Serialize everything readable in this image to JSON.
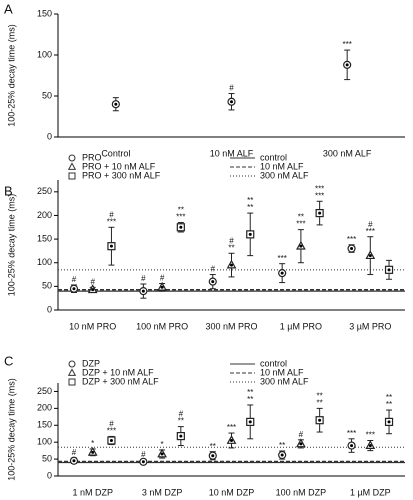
{
  "chart_data": [
    {
      "panel": "A",
      "type": "dot",
      "ylabel": "100-25% decay time (ms)",
      "categories": [
        "Control",
        "10 nM ALF",
        "300 nM ALF"
      ],
      "series": [
        {
          "marker": "circle",
          "values": [
            40,
            43,
            88
          ],
          "errors": [
            8,
            10,
            18
          ],
          "annotations": [
            [],
            [
              "#"
            ],
            [
              "***"
            ]
          ]
        }
      ],
      "ylim": [
        0,
        150
      ],
      "yticks": [
        0,
        50,
        100,
        150
      ]
    },
    {
      "panel": "B",
      "type": "dot",
      "ylabel": "100-25% decay time (ms)",
      "categories": [
        "10 nM PRO",
        "100 nM PRO",
        "300 nM PRO",
        "1 µM PRO",
        "3 µM PRO"
      ],
      "series": [
        {
          "name": "PRO",
          "marker": "circle",
          "values": [
            45,
            40,
            60,
            78,
            130
          ],
          "errors": [
            8,
            15,
            15,
            20,
            8
          ],
          "annotations": [
            [
              "#"
            ],
            [
              "#"
            ],
            [
              "#"
            ],
            [
              "***"
            ],
            [
              "***"
            ]
          ]
        },
        {
          "name": "PRO + 10 nM ALF",
          "marker": "triangle",
          "values": [
            43,
            48,
            95,
            135,
            115
          ],
          "errors": [
            5,
            8,
            25,
            35,
            40
          ],
          "annotations": [
            [
              "#"
            ],
            [
              "#"
            ],
            [
              "#",
              "**"
            ],
            [
              "**",
              "***"
            ],
            [
              "#",
              "***"
            ]
          ]
        },
        {
          "name": "PRO + 300 nM ALF",
          "marker": "square",
          "values": [
            135,
            175,
            160,
            205,
            85
          ],
          "errors": [
            40,
            10,
            45,
            25,
            20
          ],
          "annotations": [
            [
              "#",
              "***"
            ],
            [
              "**",
              "***"
            ],
            [
              "**",
              "**"
            ],
            [
              "***",
              "***"
            ],
            []
          ]
        }
      ],
      "reference_lines": [
        {
          "name": "control",
          "value": 40,
          "dash": "solid"
        },
        {
          "name": "10 nM ALF",
          "value": 43,
          "dash": "dashed"
        },
        {
          "name": "300 nM ALF",
          "value": 85,
          "dash": "dotted"
        }
      ],
      "ylim": [
        0,
        275
      ],
      "yticks": [
        0,
        50,
        100,
        150,
        200,
        250
      ]
    },
    {
      "panel": "C",
      "type": "dot",
      "ylabel": "100-25% decay time (ms)",
      "categories": [
        "1 nM DZP",
        "3 nM DZP",
        "10 nM DZP",
        "100 nM DZP",
        "1 µM DZP"
      ],
      "series": [
        {
          "name": "DZP",
          "marker": "circle",
          "values": [
            45,
            42,
            60,
            62,
            90
          ],
          "errors": [
            8,
            6,
            12,
            12,
            20
          ],
          "annotations": [
            [
              "#"
            ],
            [
              "#"
            ],
            [
              "**"
            ],
            [
              "**"
            ],
            [
              "***"
            ]
          ]
        },
        {
          "name": "DZP + 10 nM ALF",
          "marker": "triangle",
          "values": [
            70,
            65,
            105,
            95,
            90
          ],
          "errors": [
            10,
            12,
            22,
            12,
            15
          ],
          "annotations": [
            [
              "*"
            ],
            [
              "*"
            ],
            [
              "***"
            ],
            [
              "#"
            ],
            [
              "***"
            ]
          ]
        },
        {
          "name": "DZP + 300 nM ALF",
          "marker": "square",
          "values": [
            105,
            118,
            160,
            165,
            160
          ],
          "errors": [
            12,
            28,
            50,
            35,
            35
          ],
          "annotations": [
            [
              "#",
              "***"
            ],
            [
              "#",
              "**"
            ],
            [
              "**",
              "**"
            ],
            [
              "**",
              "**"
            ],
            [
              "**",
              "**"
            ]
          ]
        }
      ],
      "reference_lines": [
        {
          "name": "control",
          "value": 40,
          "dash": "solid"
        },
        {
          "name": "10 nM ALF",
          "value": 43,
          "dash": "dashed"
        },
        {
          "name": "300 nM ALF",
          "value": 85,
          "dash": "dotted"
        }
      ],
      "ylim": [
        0,
        275
      ],
      "yticks": [
        0,
        50,
        100,
        150,
        200,
        250
      ]
    }
  ]
}
